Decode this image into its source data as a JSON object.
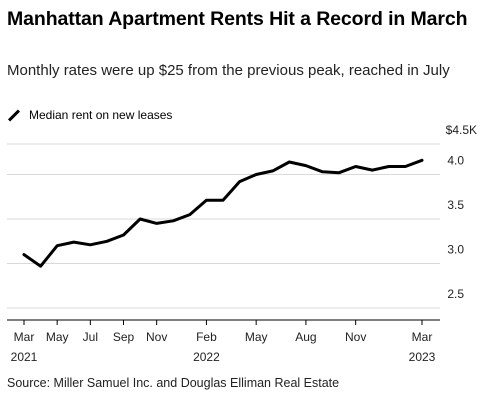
{
  "title": "Manhattan Apartment Rents Hit a Record in March",
  "subtitle": "Monthly rates were up $25 from the previous peak, reached in July",
  "legend_label": "Median rent on new leases",
  "source": "Source: Miller Samuel Inc. and Douglas Elliman Real Estate",
  "chart_data": {
    "type": "line",
    "title": "Manhattan Apartment Rents Hit a Record in March",
    "subtitle": "Monthly rates were up $25 from the previous peak, reached in July",
    "xlabel": "",
    "ylabel": "",
    "y_unit_label": "$4.5K",
    "ylim": [
      2.5,
      4.5
    ],
    "y_ticks": [
      "4.0",
      "3.5",
      "3.0",
      "2.5"
    ],
    "y_tick_values": [
      4.0,
      3.5,
      3.0,
      2.5
    ],
    "x_ticks": [
      {
        "month": "Mar",
        "year": "2021"
      },
      {
        "month": "May",
        "year": ""
      },
      {
        "month": "Jul",
        "year": ""
      },
      {
        "month": "Sep",
        "year": ""
      },
      {
        "month": "Nov",
        "year": ""
      },
      {
        "month": "Feb",
        "year": "2022"
      },
      {
        "month": "May",
        "year": ""
      },
      {
        "month": "Aug",
        "year": ""
      },
      {
        "month": "Nov",
        "year": ""
      },
      {
        "month": "Mar",
        "year": "2023"
      }
    ],
    "x_tick_dates": [
      "2021-03",
      "2021-05",
      "2021-07",
      "2021-09",
      "2021-11",
      "2022-02",
      "2022-05",
      "2022-08",
      "2022-11",
      "2023-03"
    ],
    "grid": true,
    "legend_position": "top-left",
    "series": [
      {
        "name": "Median rent on new leases",
        "color": "#000000",
        "x": [
          "2021-03",
          "2021-04",
          "2021-05",
          "2021-06",
          "2021-07",
          "2021-08",
          "2021-09",
          "2021-10",
          "2021-11",
          "2021-12",
          "2022-01",
          "2022-02",
          "2022-03",
          "2022-04",
          "2022-05",
          "2022-06",
          "2022-07",
          "2022-08",
          "2022-09",
          "2022-10",
          "2022-11",
          "2022-12",
          "2023-01",
          "2023-02",
          "2023-03"
        ],
        "values": [
          3.1,
          2.97,
          3.2,
          3.24,
          3.21,
          3.25,
          3.32,
          3.5,
          3.45,
          3.48,
          3.55,
          3.71,
          3.71,
          3.92,
          4.0,
          4.04,
          4.14,
          4.1,
          4.03,
          4.02,
          4.09,
          4.05,
          4.09,
          4.09,
          4.16
        ]
      }
    ]
  }
}
